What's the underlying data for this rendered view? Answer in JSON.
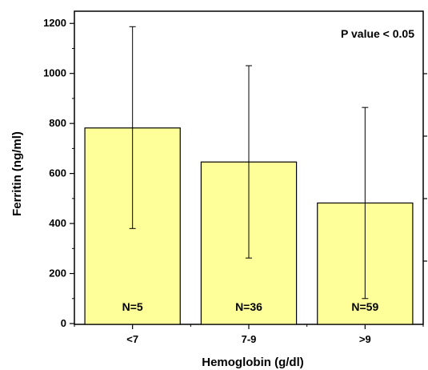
{
  "chart_data": {
    "type": "bar",
    "categories": [
      "<7",
      "7-9",
      ">9"
    ],
    "values": [
      782,
      646,
      482
    ],
    "error_upper": [
      1187,
      1031,
      864
    ],
    "error_lower": [
      380,
      262,
      100
    ],
    "n_labels": [
      "N=5",
      "N=36",
      "N=59"
    ],
    "xlabel": "Hemoglobin (g/dl)",
    "ylabel": "Ferritin (ng/ml)",
    "ylim": [
      0,
      1300
    ],
    "yticks": [
      0,
      200,
      400,
      600,
      800,
      1000,
      1200
    ],
    "ytick_labels": [
      "0",
      "200",
      "400",
      "600",
      "800",
      "1000",
      "1200"
    ],
    "annotation": "P value < 0.05",
    "bar_color": "#ffff99",
    "grid": false,
    "legend": "none"
  }
}
